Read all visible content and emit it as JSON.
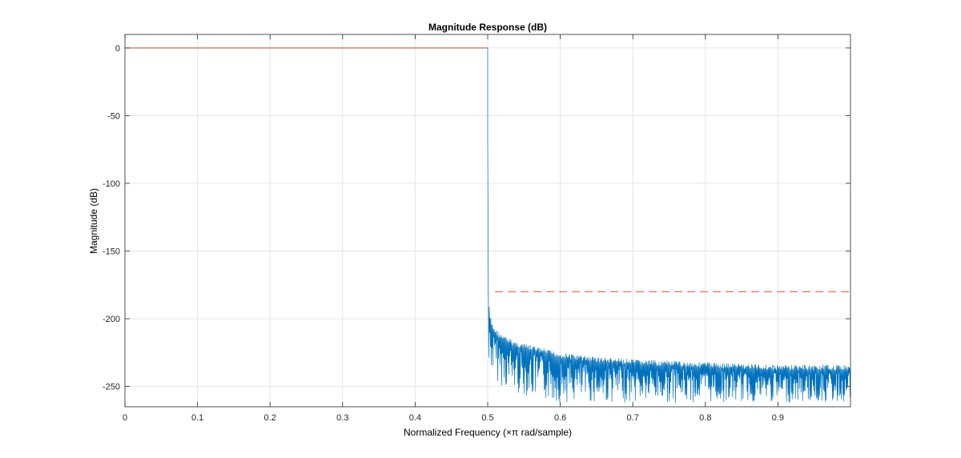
{
  "chart_data": {
    "type": "line",
    "title": "Magnitude Response (dB)",
    "xlabel": "Normalized Frequency (×π rad/sample)",
    "ylabel": "Magnitude (dB)",
    "xlim": [
      0,
      1
    ],
    "ylim": [
      -265,
      10
    ],
    "xticks": [
      0,
      0.1,
      0.2,
      0.3,
      0.4,
      0.5,
      0.6,
      0.7,
      0.8,
      0.9
    ],
    "xtick_labels": [
      "0",
      "0.1",
      "0.2",
      "0.3",
      "0.4",
      "0.5",
      "0.6",
      "0.7",
      "0.8",
      "0.9"
    ],
    "yticks": [
      0,
      -50,
      -100,
      -150,
      -200,
      -250
    ],
    "ytick_labels": [
      "0",
      "-50",
      "-100",
      "-150",
      "-200",
      "-250"
    ],
    "grid": true,
    "series": [
      {
        "color": "#0072BD",
        "style": "solid",
        "x": [
          0,
          0.5,
          0.5,
          0.501,
          0.503,
          0.506,
          0.51,
          0.52,
          0.54,
          0.57,
          0.6,
          0.65,
          0.7,
          0.75,
          0.8,
          0.85,
          0.9,
          0.95,
          1.0
        ],
        "y": [
          0,
          0,
          -70,
          -183,
          -197,
          -203,
          -207,
          -212,
          -217,
          -221,
          -225,
          -228,
          -230,
          -231,
          -232,
          -233,
          -234,
          -234,
          -234
        ],
        "envelope_floor": [
          -265,
          -265,
          -265,
          -265,
          -235,
          -240,
          -245,
          -250,
          -255,
          -260,
          -262,
          -262,
          -262,
          -262,
          -262,
          -262,
          -262,
          -262,
          -262
        ]
      },
      {
        "color": "#D95319",
        "style": "solid",
        "x": [
          0,
          0.5
        ],
        "y": [
          0,
          0
        ]
      },
      {
        "color": "#D95319",
        "style": "dashed",
        "x": [
          0.51,
          1.0
        ],
        "y": [
          -180,
          -180
        ]
      }
    ]
  }
}
